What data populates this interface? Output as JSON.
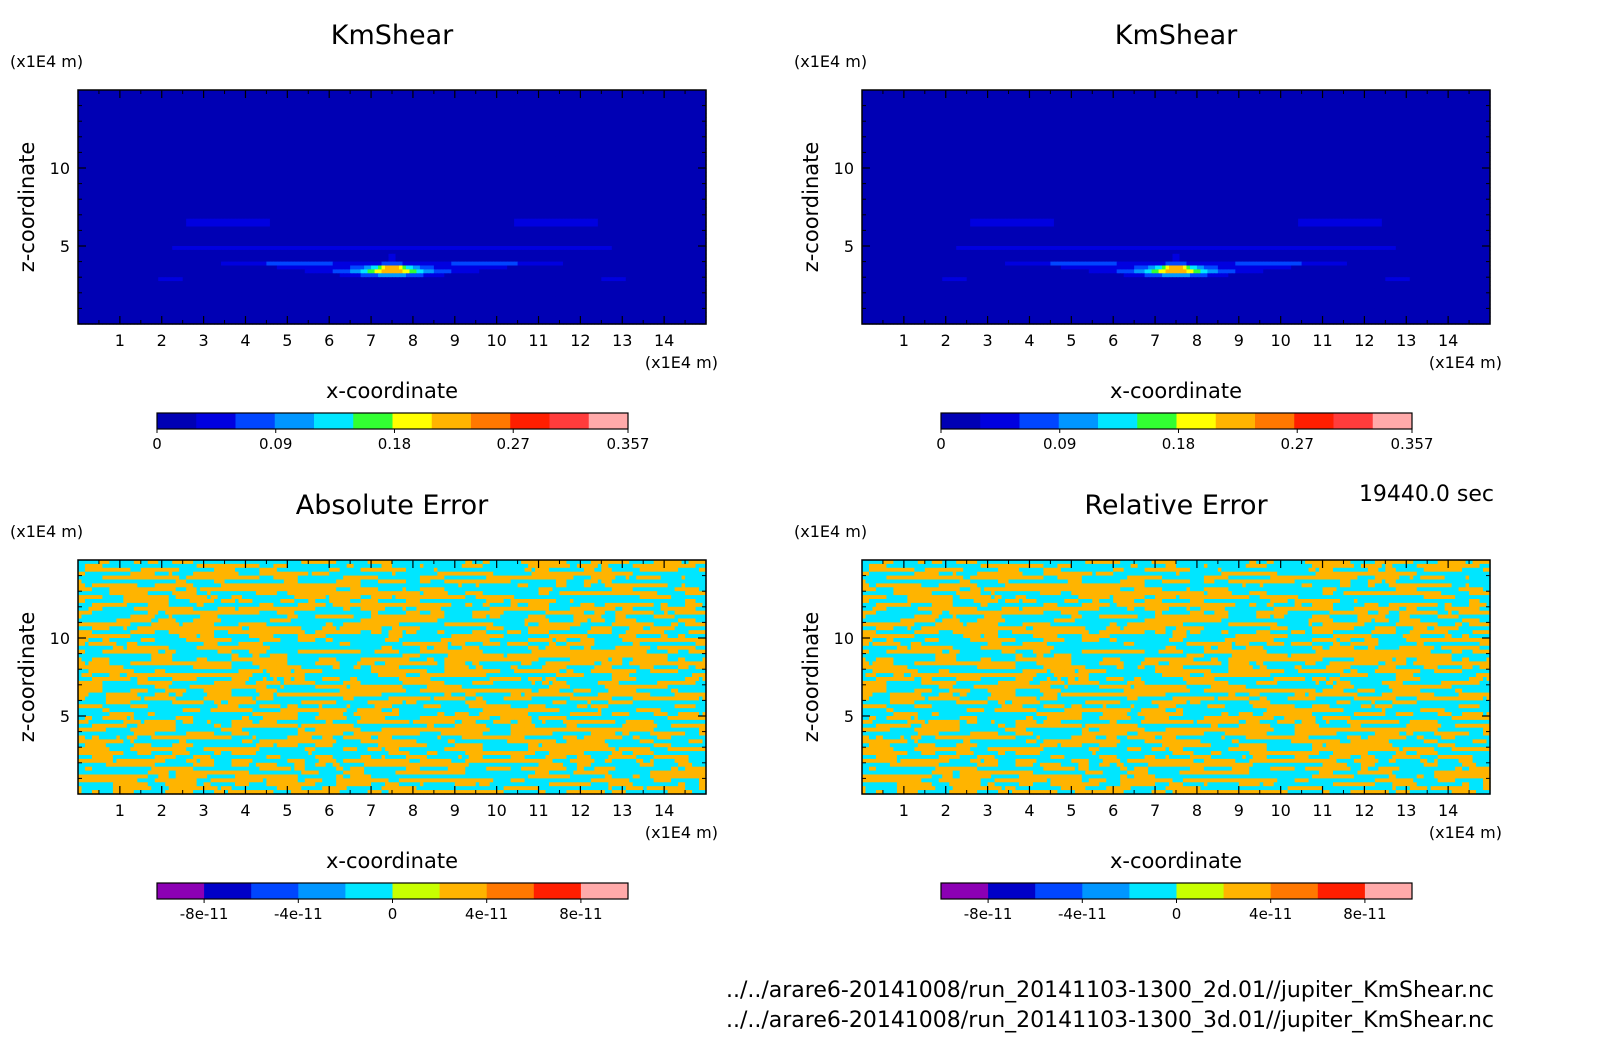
{
  "time_label": "19440.0 sec",
  "footer_lines": [
    "../../arare6-20141008/run_20141103-1300_2d.01//jupiter_KmShear.nc",
    "../../arare6-20141008/run_20141103-1300_3d.01//jupiter_KmShear.nc"
  ],
  "chart_data": [
    {
      "type": "heatmap",
      "title": "KmShear",
      "xlabel": "x-coordinate",
      "ylabel": "z-coordinate",
      "x_unit": "(x1E4 m)",
      "y_unit": "(x1E4 m)",
      "xlim": [
        0,
        15
      ],
      "ylim": [
        0,
        15
      ],
      "x_ticks": [
        1,
        2,
        3,
        4,
        5,
        6,
        7,
        8,
        9,
        10,
        11,
        12,
        13,
        14
      ],
      "y_ticks": [
        5,
        10
      ],
      "field": "kmshear",
      "colors": [
        "#0000b4",
        "#0000e0",
        "#0046ff",
        "#0096ff",
        "#00e6ff",
        "#32ff32",
        "#ffff00",
        "#ffb400",
        "#ff7800",
        "#ff1e00",
        "#ff3c3c",
        "#ffaaaa"
      ],
      "colorbar_labels": [
        {
          "v": 0,
          "t": "0"
        },
        {
          "v": 0.09,
          "t": "0.09"
        },
        {
          "v": 0.18,
          "t": "0.18"
        },
        {
          "v": 0.27,
          "t": "0.27"
        },
        {
          "v": 0.357,
          "t": "0.357"
        }
      ],
      "colorbar_range": [
        0,
        0.357
      ]
    },
    {
      "type": "heatmap",
      "title": "KmShear",
      "xlabel": "x-coordinate",
      "ylabel": "z-coordinate",
      "x_unit": "(x1E4 m)",
      "y_unit": "(x1E4 m)",
      "xlim": [
        0,
        15
      ],
      "ylim": [
        0,
        15
      ],
      "x_ticks": [
        1,
        2,
        3,
        4,
        5,
        6,
        7,
        8,
        9,
        10,
        11,
        12,
        13,
        14
      ],
      "y_ticks": [
        5,
        10
      ],
      "field": "kmshear",
      "colors": [
        "#0000b4",
        "#0000e0",
        "#0046ff",
        "#0096ff",
        "#00e6ff",
        "#32ff32",
        "#ffff00",
        "#ffb400",
        "#ff7800",
        "#ff1e00",
        "#ff3c3c",
        "#ffaaaa"
      ],
      "colorbar_labels": [
        {
          "v": 0,
          "t": "0"
        },
        {
          "v": 0.09,
          "t": "0.09"
        },
        {
          "v": 0.18,
          "t": "0.18"
        },
        {
          "v": 0.27,
          "t": "0.27"
        },
        {
          "v": 0.357,
          "t": "0.357"
        }
      ],
      "colorbar_range": [
        0,
        0.357
      ]
    },
    {
      "type": "heatmap",
      "title": "Absolute Error",
      "xlabel": "x-coordinate",
      "ylabel": "z-coordinate",
      "x_unit": "(x1E4 m)",
      "y_unit": "(x1E4 m)",
      "xlim": [
        0,
        15
      ],
      "ylim": [
        0,
        15
      ],
      "x_ticks": [
        1,
        2,
        3,
        4,
        5,
        6,
        7,
        8,
        9,
        10,
        11,
        12,
        13,
        14
      ],
      "y_ticks": [
        5,
        10
      ],
      "field": "error",
      "colors": [
        "#8c00b4",
        "#0000c8",
        "#0046ff",
        "#0096ff",
        "#00e6ff",
        "#c8ff00",
        "#ffb400",
        "#ff7800",
        "#ff1e00",
        "#ffaaaa"
      ],
      "colorbar_labels": [
        {
          "v": -8e-11,
          "t": "-8e-11"
        },
        {
          "v": -4e-11,
          "t": "-4e-11"
        },
        {
          "v": 0,
          "t": "0"
        },
        {
          "v": 4e-11,
          "t": "4e-11"
        },
        {
          "v": 8e-11,
          "t": "8e-11"
        }
      ],
      "colorbar_range": [
        -1e-10,
        1e-10
      ]
    },
    {
      "type": "heatmap",
      "title": "Relative Error",
      "xlabel": "x-coordinate",
      "ylabel": "z-coordinate",
      "x_unit": "(x1E4 m)",
      "y_unit": "(x1E4 m)",
      "xlim": [
        0,
        15
      ],
      "ylim": [
        0,
        15
      ],
      "x_ticks": [
        1,
        2,
        3,
        4,
        5,
        6,
        7,
        8,
        9,
        10,
        11,
        12,
        13,
        14
      ],
      "y_ticks": [
        5,
        10
      ],
      "field": "error",
      "colors": [
        "#8c00b4",
        "#0000c8",
        "#0046ff",
        "#0096ff",
        "#00e6ff",
        "#c8ff00",
        "#ffb400",
        "#ff7800",
        "#ff1e00",
        "#ffaaaa"
      ],
      "colorbar_labels": [
        {
          "v": -8e-11,
          "t": "-8e-11"
        },
        {
          "v": -4e-11,
          "t": "-4e-11"
        },
        {
          "v": 0,
          "t": "0"
        },
        {
          "v": 4e-11,
          "t": "4e-11"
        },
        {
          "v": 8e-11,
          "t": "8e-11"
        }
      ],
      "colorbar_range": [
        -1e-10,
        1e-10
      ]
    }
  ]
}
